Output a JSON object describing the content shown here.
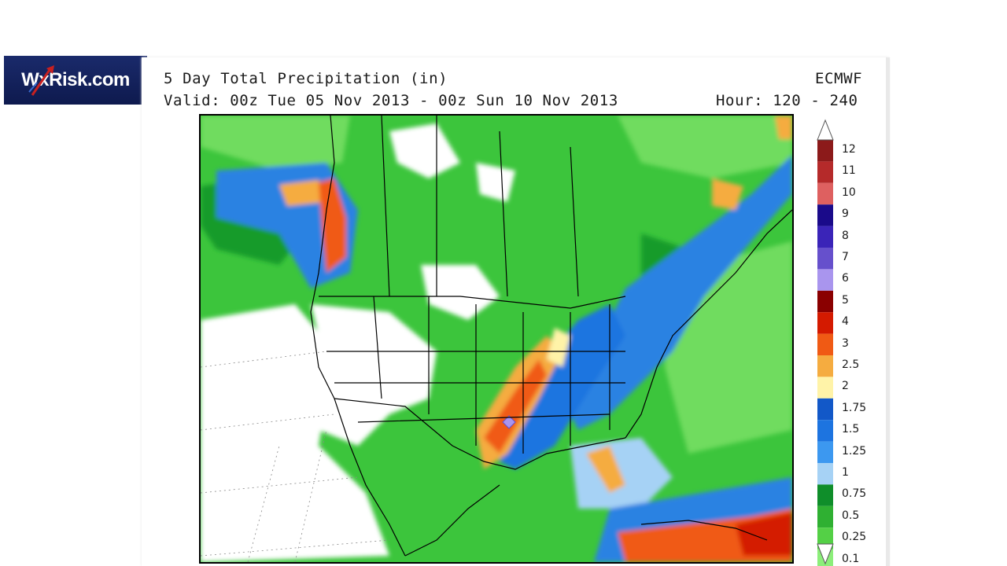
{
  "logo": {
    "text": "WxRisk.com"
  },
  "header": {
    "title": "5 Day Total Precipitation (in)",
    "model": "ECMWF",
    "valid": "Valid: 00z Tue 05 Nov 2013 - 00z Sun 10 Nov 2013",
    "hour": "Hour: 120 - 240"
  },
  "legend": {
    "labels": [
      "12",
      "11",
      "10",
      "9",
      "8",
      "7",
      "6",
      "5",
      "4",
      "3",
      "2.5",
      "2",
      "1.75",
      "1.5",
      "1.25",
      "1",
      "0.75",
      "0.5",
      "0.25",
      "0.1"
    ],
    "colors": [
      "#8c1a1a",
      "#b52a2a",
      "#de6060",
      "#1a0a8a",
      "#3a24b8",
      "#6650cc",
      "#a995ee",
      "#8a0000",
      "#d41a00",
      "#f05a14",
      "#f5ac40",
      "#fff3a8",
      "#1258c8",
      "#1d74e0",
      "#3c98f0",
      "#a6d2f5",
      "#0f8e2a",
      "#2fb032",
      "#54d046",
      "#8cee7a"
    ]
  },
  "map": {
    "colors": {
      "green": "#3cc53c",
      "light_green": "#70dc5e",
      "dark_green": "#159b2c",
      "light_blue": "#a6d2f5",
      "blue": "#2a82e2",
      "dark_blue": "#1258c8",
      "yellow": "#fff3a8",
      "orange": "#f5ac40",
      "red_orange": "#f05a14",
      "red": "#d41a00",
      "lavender": "#a995ee",
      "white": "#ffffff"
    }
  }
}
